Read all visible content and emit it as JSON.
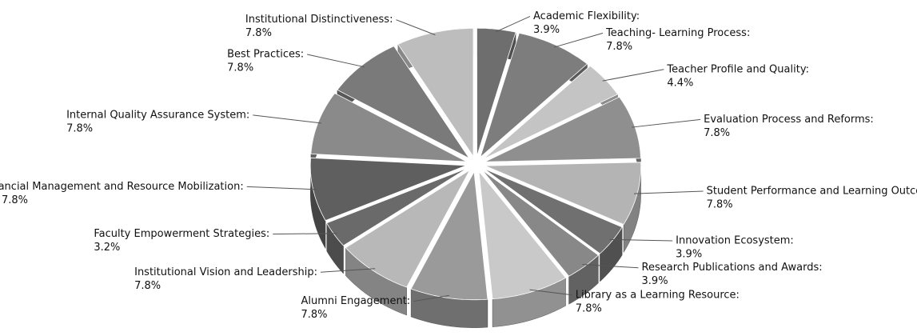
{
  "chart_data": {
    "type": "pie3d",
    "categories": [
      "Academic Flexibility:",
      "Teaching- Learning Process:",
      "Teacher Profile and Quality:",
      "Evaluation Process and Reforms:",
      "Student Performance and Learning Outcomes:",
      "Innovation Ecosystem:",
      "Research Publications and Awards:",
      "Library as a Learning Resource:",
      "Alumni Engagement:",
      "Institutional Vision and Leadership:",
      "Faculty Empowerment Strategies:",
      "Financial Management and Resource Mobilization:",
      "Internal Quality Assurance System:",
      "Best Practices:",
      "Institutional Distinctiveness:"
    ],
    "values": [
      3.9,
      7.8,
      4.4,
      7.8,
      7.8,
      3.9,
      3.9,
      7.8,
      7.8,
      7.8,
      3.2,
      7.8,
      7.8,
      7.8,
      7.8
    ],
    "value_labels": [
      "3.9%",
      "7.8%",
      "4.4%",
      "7.8%",
      "7.8%",
      "3.9%",
      "3.9%",
      "7.8%",
      "7.8%",
      "7.8%",
      "3.2%",
      "7.8%",
      "7.8%",
      "7.8%",
      "7.8%"
    ],
    "colors": [
      "#6e6e6e",
      "#7d7d7d",
      "#c4c4c4",
      "#8f8f8f",
      "#b4b4b4",
      "#707070",
      "#888888",
      "#c9c9c9",
      "#9a9a9a",
      "#b8b8b8",
      "#6a6a6a",
      "#5f5f5f",
      "#8a8a8a",
      "#7a7a7a",
      "#bdbdbd"
    ]
  }
}
